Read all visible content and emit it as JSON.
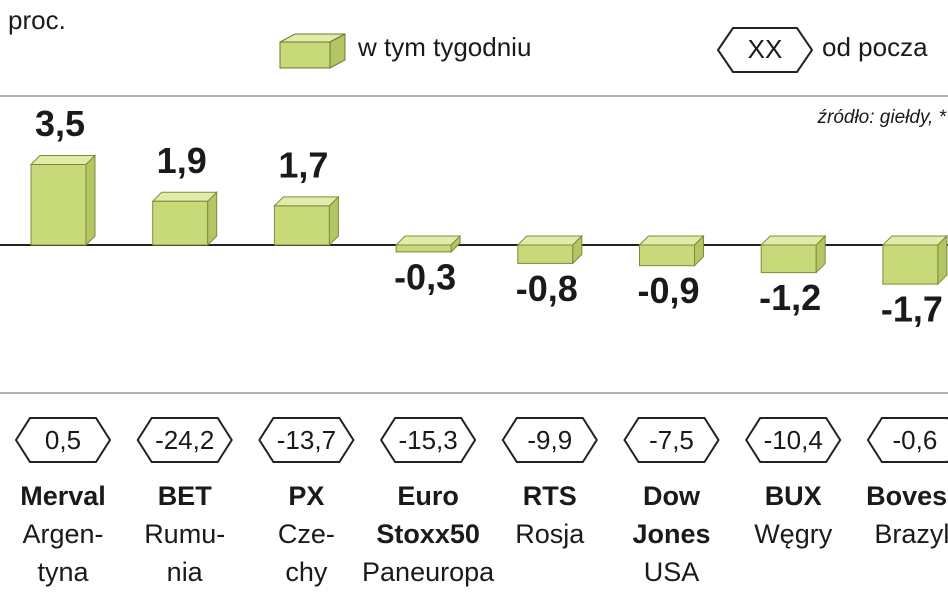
{
  "chart_data": {
    "type": "bar",
    "unit_label": "proc.",
    "legend": {
      "week": "w tym tygodniu",
      "ytd_badge": "XX",
      "ytd": "od pocza"
    },
    "source": "źródło: giełdy, *",
    "color": "#c8d97a",
    "top_color": "#e2ecaa",
    "ylim": [
      -4.5,
      4.5
    ],
    "values": [
      3.5,
      1.9,
      1.7,
      -0.3,
      -0.8,
      -0.9,
      -1.2,
      -1.7
    ],
    "value_labels": [
      "3,5",
      "1,9",
      "1,7",
      "-0,3",
      "-0,8",
      "-0,9",
      "-1,2",
      "-1,7"
    ],
    "ytd_values": [
      0.5,
      -24.2,
      -13.7,
      -15.3,
      -9.9,
      -7.5,
      -10.4,
      -0.6
    ],
    "ytd_labels": [
      "0,5",
      "-24,2",
      "-13,7",
      "-15,3",
      "-9,9",
      "-7,5",
      "-10,4",
      "-0,6"
    ],
    "labels": [
      {
        "index": [
          "Merval"
        ],
        "country": [
          "Argen-",
          "tyna"
        ]
      },
      {
        "index": [
          "BET"
        ],
        "country": [
          "Rumu-",
          "nia"
        ]
      },
      {
        "index": [
          "PX"
        ],
        "country": [
          "Cze-",
          "chy"
        ]
      },
      {
        "index": [
          "Euro",
          "Stoxx50"
        ],
        "country": [
          "Paneuropa"
        ]
      },
      {
        "index": [
          "RTS"
        ],
        "country": [
          "Rosja"
        ]
      },
      {
        "index": [
          "Dow",
          "Jones"
        ],
        "country": [
          "USA"
        ]
      },
      {
        "index": [
          "BUX"
        ],
        "country": [
          "Węgry"
        ]
      },
      {
        "index": [
          "Bovesp"
        ],
        "country": [
          "Brazyli"
        ]
      }
    ]
  }
}
